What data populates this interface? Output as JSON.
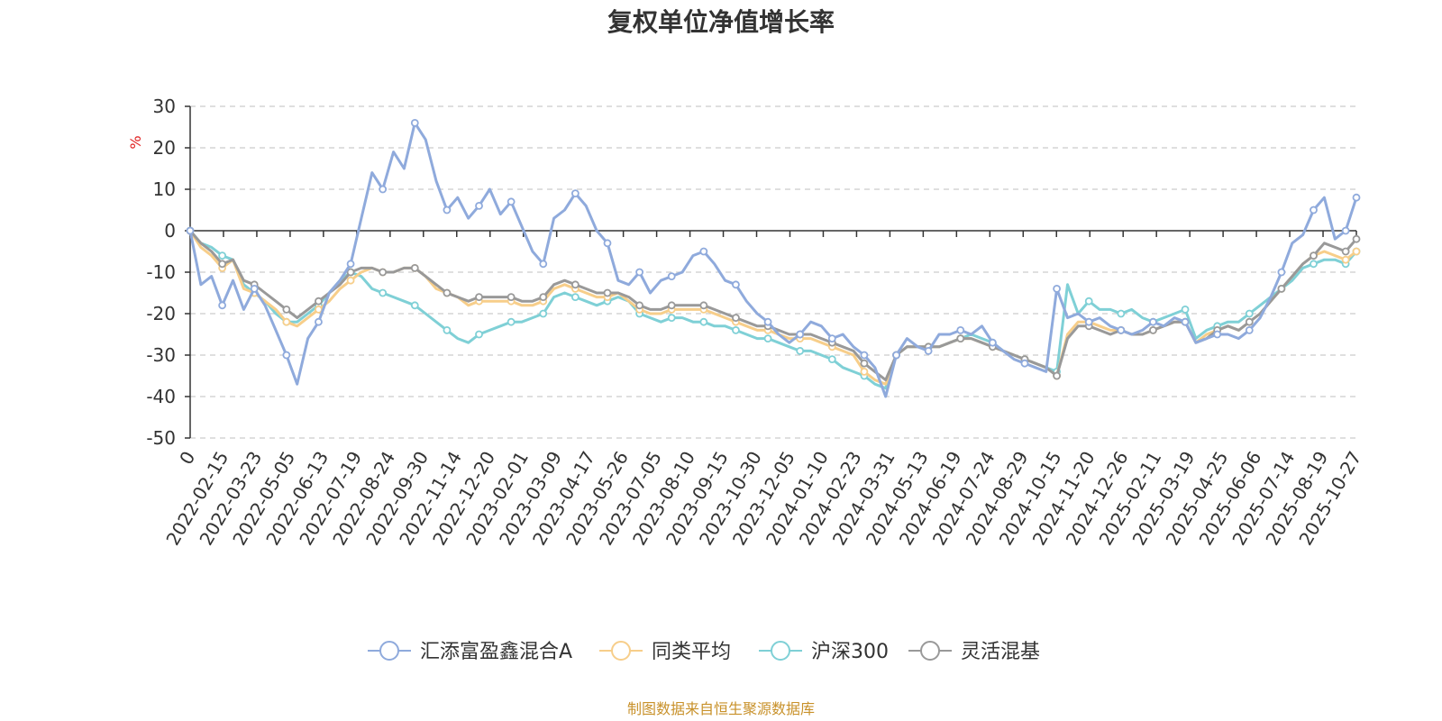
{
  "chart_data": {
    "type": "line",
    "title": "复权单位净值增长率",
    "ylabel": "%",
    "ylim": [
      -50,
      30
    ],
    "yticks": [
      30,
      20,
      10,
      0,
      -10,
      -20,
      -30,
      -40,
      -50
    ],
    "x_tick_labels": [
      "0",
      "2022-02-15",
      "2022-03-23",
      "2022-05-05",
      "2022-06-13",
      "2022-07-19",
      "2022-08-24",
      "2022-09-30",
      "2022-11-14",
      "2022-12-20",
      "2023-02-01",
      "2023-03-09",
      "2023-04-17",
      "2023-05-26",
      "2023-07-05",
      "2023-08-10",
      "2023-09-15",
      "2023-10-30",
      "2023-12-05",
      "2024-01-10",
      "2024-02-23",
      "2024-03-31",
      "2024-05-13",
      "2024-06-19",
      "2024-07-24",
      "2024-08-29",
      "2024-10-15",
      "2024-11-20",
      "2024-12-26",
      "2025-02-11",
      "2025-03-19",
      "2025-04-25",
      "2025-06-06",
      "2025-07-14",
      "2025-08-19",
      "2025-10-27"
    ],
    "grid": true,
    "legend_position": "bottom",
    "series": [
      {
        "name": "汇添富盈鑫混合A",
        "color": "#8faadc",
        "values": [
          0,
          -13,
          -11,
          -18,
          -12,
          -19,
          -14,
          -18,
          -24,
          -30,
          -37,
          -26,
          -22,
          -15,
          -12,
          -8,
          3,
          14,
          10,
          19,
          15,
          26,
          22,
          12,
          5,
          8,
          3,
          6,
          10,
          4,
          7,
          1,
          -5,
          -8,
          3,
          5,
          9,
          6,
          0,
          -3,
          -12,
          -13,
          -10,
          -15,
          -12,
          -11,
          -10,
          -6,
          -5,
          -8,
          -12,
          -13,
          -17,
          -20,
          -22,
          -25,
          -27,
          -25,
          -22,
          -23,
          -26,
          -25,
          -28,
          -30,
          -33,
          -40,
          -30,
          -26,
          -28,
          -29,
          -25,
          -25,
          -24,
          -25,
          -23,
          -27,
          -29,
          -31,
          -32,
          -33,
          -34,
          -14,
          -21,
          -20,
          -22,
          -21,
          -23,
          -24,
          -25,
          -24,
          -22,
          -23,
          -21,
          -22,
          -27,
          -26,
          -25,
          -25,
          -26,
          -24,
          -21,
          -16,
          -10,
          -3,
          -1,
          5,
          8,
          -2,
          0,
          8
        ]
      },
      {
        "name": "同类平均",
        "color": "#f7ce8a",
        "values": [
          0,
          -4,
          -6,
          -9,
          -7,
          -14,
          -15,
          -17,
          -19,
          -22,
          -23,
          -21,
          -19,
          -17,
          -14,
          -12,
          -10,
          -9,
          -10,
          -10,
          -9,
          -9,
          -11,
          -14,
          -15,
          -16,
          -18,
          -17,
          -17,
          -17,
          -17,
          -18,
          -18,
          -17,
          -14,
          -13,
          -14,
          -15,
          -16,
          -16,
          -15,
          -17,
          -19,
          -20,
          -20,
          -19,
          -19,
          -19,
          -19,
          -20,
          -21,
          -22,
          -23,
          -24,
          -24,
          -25,
          -26,
          -26,
          -26,
          -27,
          -28,
          -29,
          -30,
          -34,
          -36,
          -37,
          -30,
          -28,
          -28,
          -28,
          -28,
          -27,
          -26,
          -26,
          -27,
          -28,
          -29,
          -30,
          -31,
          -32,
          -33,
          -35,
          -25,
          -22,
          -22,
          -23,
          -24,
          -24,
          -25,
          -25,
          -24,
          -23,
          -22,
          -22,
          -27,
          -25,
          -24,
          -23,
          -24,
          -22,
          -20,
          -17,
          -14,
          -11,
          -8,
          -6,
          -5,
          -6,
          -7,
          -5
        ]
      },
      {
        "name": "沪深300",
        "color": "#7fd0d6",
        "values": [
          0,
          -3,
          -4,
          -6,
          -7,
          -13,
          -15,
          -17,
          -20,
          -22,
          -22,
          -20,
          -18,
          -15,
          -12,
          -10,
          -11,
          -14,
          -15,
          -16,
          -17,
          -18,
          -20,
          -22,
          -24,
          -26,
          -27,
          -25,
          -24,
          -23,
          -22,
          -22,
          -21,
          -20,
          -16,
          -15,
          -16,
          -17,
          -18,
          -17,
          -16,
          -17,
          -20,
          -21,
          -22,
          -21,
          -21,
          -22,
          -22,
          -23,
          -23,
          -24,
          -25,
          -26,
          -26,
          -27,
          -28,
          -29,
          -29,
          -30,
          -31,
          -33,
          -34,
          -35,
          -37,
          -38,
          -30,
          -28,
          -28,
          -28,
          -28,
          -27,
          -26,
          -25,
          -26,
          -27,
          -29,
          -30,
          -31,
          -32,
          -33,
          -34,
          -13,
          -20,
          -17,
          -19,
          -19,
          -20,
          -19,
          -21,
          -22,
          -21,
          -20,
          -19,
          -26,
          -24,
          -23,
          -22,
          -22,
          -20,
          -18,
          -16,
          -14,
          -12,
          -9,
          -8,
          -7,
          -7,
          -8,
          -5
        ]
      },
      {
        "name": "灵活混基",
        "color": "#999999",
        "values": [
          0,
          -3,
          -5,
          -8,
          -7,
          -12,
          -13,
          -15,
          -17,
          -19,
          -21,
          -19,
          -17,
          -15,
          -13,
          -10,
          -9,
          -9,
          -10,
          -10,
          -9,
          -9,
          -11,
          -13,
          -15,
          -16,
          -17,
          -16,
          -16,
          -16,
          -16,
          -17,
          -17,
          -16,
          -13,
          -12,
          -13,
          -14,
          -15,
          -15,
          -15,
          -16,
          -18,
          -19,
          -19,
          -18,
          -18,
          -18,
          -18,
          -19,
          -20,
          -21,
          -22,
          -23,
          -23,
          -24,
          -25,
          -25,
          -25,
          -26,
          -27,
          -28,
          -29,
          -32,
          -34,
          -36,
          -30,
          -28,
          -28,
          -28,
          -28,
          -27,
          -26,
          -26,
          -27,
          -28,
          -29,
          -30,
          -31,
          -32,
          -33,
          -35,
          -26,
          -23,
          -23,
          -24,
          -25,
          -24,
          -25,
          -25,
          -24,
          -23,
          -22,
          -22,
          -27,
          -26,
          -24,
          -23,
          -24,
          -22,
          -20,
          -17,
          -14,
          -11,
          -8,
          -6,
          -3,
          -4,
          -5,
          -2
        ]
      }
    ]
  },
  "footer": {
    "source": "制图数据来自恒生聚源数据库"
  }
}
